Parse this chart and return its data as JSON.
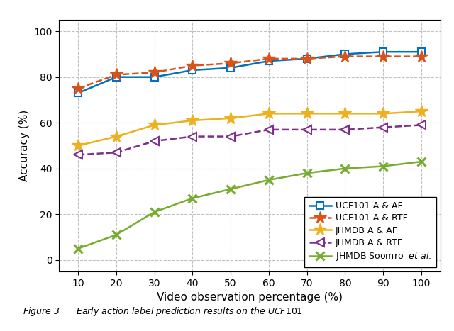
{
  "x": [
    10,
    20,
    30,
    40,
    50,
    60,
    70,
    80,
    90,
    100
  ],
  "ucf101_af": [
    73,
    80,
    80,
    83,
    84,
    87,
    88,
    90,
    91,
    91
  ],
  "ucf101_rtf": [
    75,
    81,
    82,
    85,
    86,
    88,
    88,
    89,
    89,
    89
  ],
  "jhmdb_af": [
    50,
    54,
    59,
    61,
    62,
    64,
    64,
    64,
    64,
    65
  ],
  "jhmdb_rtf": [
    46,
    47,
    52,
    54,
    54,
    57,
    57,
    57,
    58,
    59
  ],
  "jhmdb_soomro": [
    5,
    11,
    21,
    27,
    31,
    35,
    38,
    40,
    41,
    43
  ],
  "ucf101_af_color": "#0072BD",
  "ucf101_rtf_color": "#D95319",
  "jhmdb_af_color": "#EDB120",
  "jhmdb_rtf_color": "#7E2F8E",
  "jhmdb_soomro_color": "#77AC30",
  "xlabel": "Video observation percentage (%)",
  "ylabel": "Accuracy (%)",
  "ylim": [
    -5,
    105
  ],
  "xlim": [
    5,
    105
  ],
  "yticks": [
    0,
    20,
    40,
    60,
    80,
    100
  ],
  "xticks": [
    10,
    20,
    30,
    40,
    50,
    60,
    70,
    80,
    90,
    100
  ],
  "legend_labels": [
    "UCF101 A & AF",
    "UCF101 A & RTF",
    "JHMDB A & AF",
    "JHMDB A & RTF",
    "JHMDB Soomro"
  ],
  "caption": "Figure 3      Early action label prediction results on the UCF101",
  "grid_color": "#bbbbbb",
  "background_color": "#ffffff"
}
